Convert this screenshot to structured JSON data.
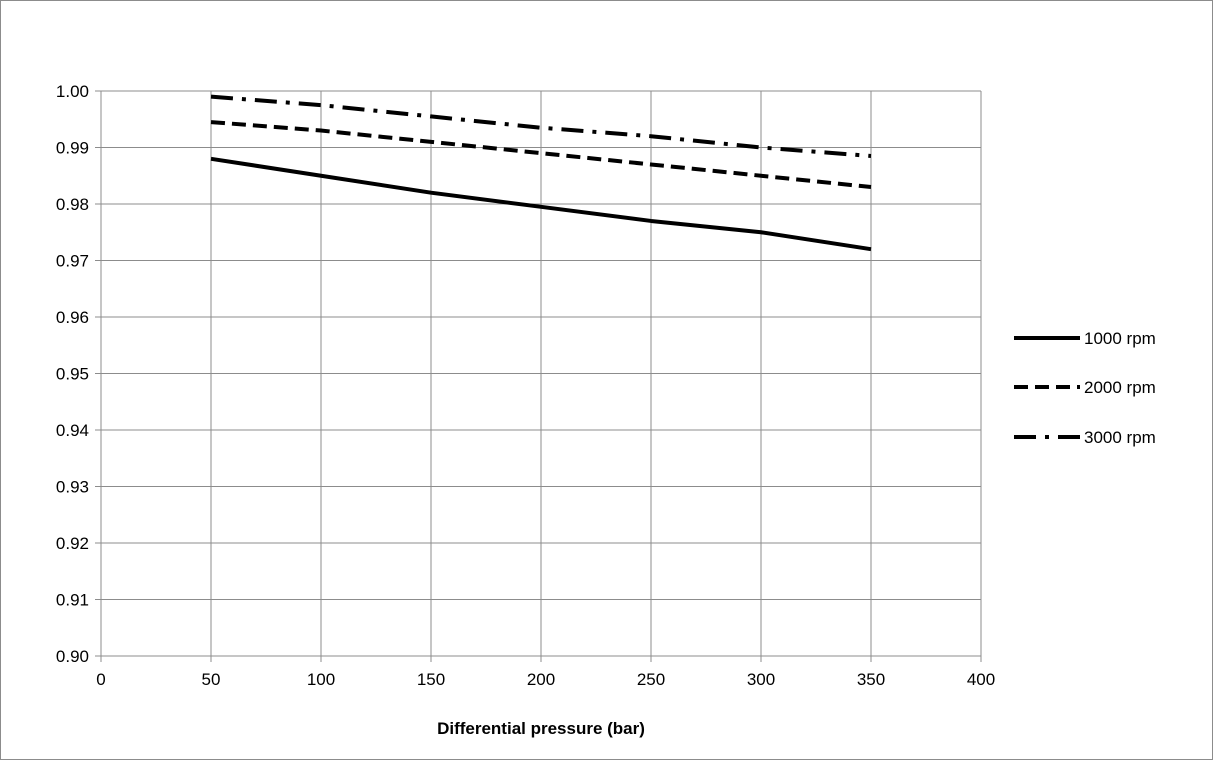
{
  "chart_data": {
    "type": "line",
    "title": "",
    "xlabel": "Differential pressure (bar)",
    "ylabel": "",
    "xlim": [
      0,
      400
    ],
    "ylim": [
      0.9,
      1.0
    ],
    "x_ticks": [
      "0",
      "50",
      "100",
      "150",
      "200",
      "250",
      "300",
      "350",
      "400"
    ],
    "y_ticks": [
      "0.90",
      "0.91",
      "0.92",
      "0.93",
      "0.94",
      "0.95",
      "0.96",
      "0.97",
      "0.98",
      "0.99",
      "1.00"
    ],
    "grid": true,
    "legend_position": "right",
    "x": [
      50,
      100,
      150,
      200,
      250,
      300,
      350
    ],
    "series": [
      {
        "name": "1000 rpm",
        "values": [
          0.988,
          0.985,
          0.982,
          0.9795,
          0.977,
          0.975,
          0.972
        ],
        "line_style": "solid",
        "color": "#000000"
      },
      {
        "name": "2000 rpm",
        "values": [
          0.9945,
          0.993,
          0.991,
          0.989,
          0.987,
          0.985,
          0.983
        ],
        "line_style": "dashed",
        "color": "#000000"
      },
      {
        "name": "3000 rpm",
        "values": [
          0.999,
          0.9975,
          0.9955,
          0.9935,
          0.992,
          0.99,
          0.9885
        ],
        "line_style": "dash-dot",
        "color": "#000000"
      }
    ]
  }
}
